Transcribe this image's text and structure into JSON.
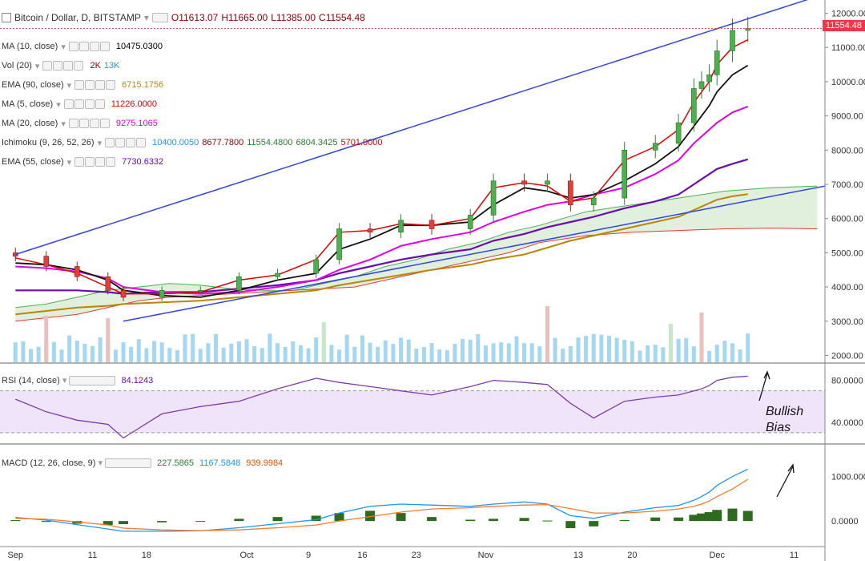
{
  "header": {
    "symbol_label": "Bitcoin / Dollar, D, BITSTAMP",
    "open": "O11613.07",
    "high": "H11665.00",
    "low": "L11385.00",
    "close": "C11554.48",
    "last_price": "11554.48"
  },
  "indicators": [
    {
      "name": "MA (10, close)",
      "values": [
        "10475.0300"
      ],
      "colors": [
        "#000000"
      ]
    },
    {
      "name": "Vol (20)",
      "values": [
        "2K",
        "13K"
      ],
      "colors": [
        "#8b0000",
        "#2196f3"
      ]
    },
    {
      "name": "EMA (90, close)",
      "values": [
        "6715.1756"
      ],
      "colors": [
        "#b8860b"
      ]
    },
    {
      "name": "MA (5, close)",
      "values": [
        "11226.0000"
      ],
      "colors": [
        "#e00000"
      ]
    },
    {
      "name": "MA (20, close)",
      "values": [
        "9275.1065"
      ],
      "colors": [
        "#e100e1"
      ]
    },
    {
      "name": "Ichimoku (9, 26, 52, 26)",
      "values": [
        "10400.0050",
        "8677.7800",
        "11554.4800",
        "6804.3425",
        "5701.0000"
      ],
      "colors": [
        "#2196f3",
        "#8b0000",
        "#2e7d32",
        "#2e7d32",
        "#e00000"
      ]
    },
    {
      "name": "EMA (55, close)",
      "values": [
        "7730.6332"
      ],
      "colors": [
        "#6a0dad"
      ]
    }
  ],
  "rsi": {
    "name": "RSI (14, close)",
    "value": "84.1243"
  },
  "macd": {
    "name": "MACD (12, 26, close, 9)",
    "values": [
      "227.5865",
      "1167.5848",
      "939.9984"
    ],
    "colors": [
      "#2e7d32",
      "#2196f3",
      "#e65100"
    ]
  },
  "annotation": {
    "line1": "Bullish",
    "line2": "Bias"
  },
  "colors": {
    "up": "#3c9a3c",
    "down": "#e0403a",
    "trendline": "#3344dd"
  },
  "chart_data": {
    "type": "candlestick",
    "price_axis": [
      "12000.00",
      "11000.00",
      "10000.00",
      "9000.00",
      "8000.00",
      "7000.00",
      "6000.00",
      "5000.00",
      "4000.00",
      "3000.00",
      "2000.00"
    ],
    "price_ylim": [
      1800,
      12200
    ],
    "rsi_axis": [
      "80.0000",
      "40.0000"
    ],
    "macd_axis": [
      "1000.0000",
      "0.0000"
    ],
    "x_labels": [
      "Sep",
      "11",
      "18",
      "Oct",
      "9",
      "16",
      "23",
      "Nov",
      "13",
      "20",
      "Dec",
      "11"
    ],
    "x_label_dates": [
      "2017-09-01",
      "2017-09-11",
      "2017-09-18",
      "2017-10-01",
      "2017-10-09",
      "2017-10-16",
      "2017-10-23",
      "2017-11-01",
      "2017-11-13",
      "2017-11-20",
      "2017-12-01",
      "2017-12-11"
    ],
    "dates": [
      "2017-09-01",
      "2017-09-05",
      "2017-09-09",
      "2017-09-13",
      "2017-09-15",
      "2017-09-20",
      "2017-09-25",
      "2017-09-30",
      "2017-10-05",
      "2017-10-10",
      "2017-10-13",
      "2017-10-17",
      "2017-10-21",
      "2017-10-25",
      "2017-10-30",
      "2017-11-02",
      "2017-11-06",
      "2017-11-09",
      "2017-11-12",
      "2017-11-15",
      "2017-11-19",
      "2017-11-23",
      "2017-11-26",
      "2017-11-28",
      "2017-11-29",
      "2017-11-30",
      "2017-12-01",
      "2017-12-03",
      "2017-12-05"
    ],
    "close": [
      4900,
      4600,
      4300,
      3900,
      3700,
      3900,
      3900,
      4300,
      4400,
      4800,
      5700,
      5600,
      5950,
      5700,
      6100,
      7100,
      7000,
      7100,
      6400,
      6600,
      8000,
      8200,
      8800,
      9800,
      10000,
      10200,
      10900,
      11500,
      11554
    ],
    "ma10": [
      4700,
      4650,
      4500,
      4200,
      3900,
      3750,
      3700,
      3900,
      4200,
      4400,
      5100,
      5400,
      5800,
      5800,
      5900,
      6400,
      6900,
      6800,
      6600,
      6700,
      7100,
      7600,
      8100,
      8700,
      9000,
      9300,
      9700,
      10200,
      10475
    ],
    "ma5": [
      4850,
      4650,
      4400,
      4000,
      3800,
      3800,
      3850,
      4200,
      4350,
      4800,
      5600,
      5650,
      5850,
      5800,
      6000,
      6900,
      7050,
      6950,
      6500,
      6600,
      7700,
      8100,
      8600,
      9400,
      9700,
      10000,
      10500,
      11000,
      11226
    ],
    "ma20": [
      4600,
      4550,
      4450,
      4250,
      4000,
      3850,
      3800,
      3850,
      4000,
      4200,
      4500,
      4800,
      5200,
      5400,
      5600,
      5900,
      6200,
      6400,
      6500,
      6700,
      6900,
      7300,
      7700,
      8200,
      8400,
      8600,
      8800,
      9100,
      9275
    ],
    "ema55": [
      3900,
      3900,
      3900,
      3850,
      3800,
      3850,
      3850,
      3950,
      4050,
      4200,
      4400,
      4600,
      4800,
      4950,
      5100,
      5350,
      5550,
      5750,
      5900,
      6050,
      6300,
      6500,
      6700,
      7000,
      7150,
      7300,
      7450,
      7600,
      7730
    ],
    "ema90": [
      3200,
      3300,
      3400,
      3450,
      3500,
      3550,
      3600,
      3700,
      3800,
      3900,
      4050,
      4200,
      4350,
      4500,
      4650,
      4800,
      4950,
      5150,
      5350,
      5500,
      5700,
      5900,
      6050,
      6250,
      6350,
      6450,
      6550,
      6650,
      6715
    ]
  }
}
